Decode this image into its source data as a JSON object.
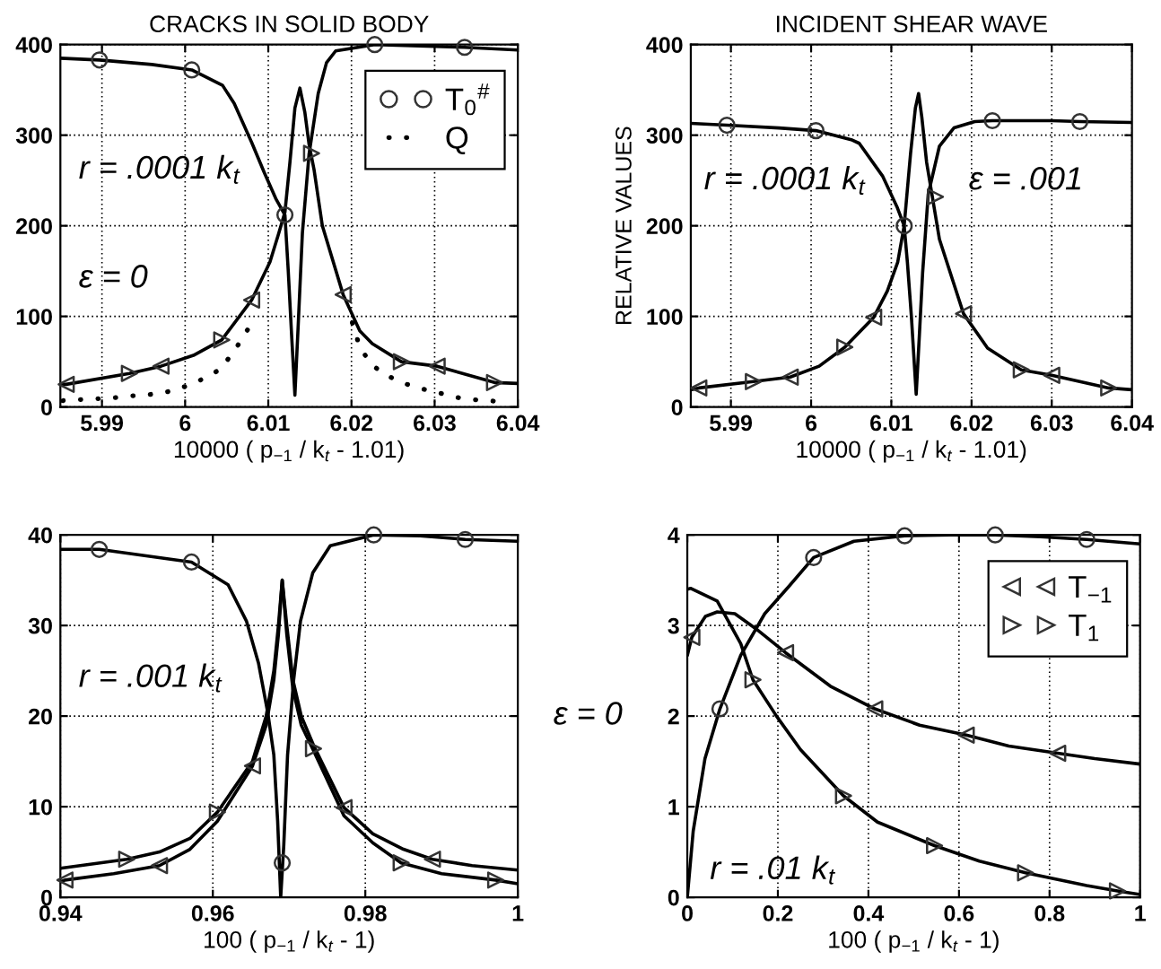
{
  "chart_data": [
    {
      "type": "line",
      "title": "CRACKS IN SOLID BODY",
      "xlabel": "10000 ( p$_{−1}$ / k$_{t}$ - 1.01)",
      "xlim": [
        5.985,
        6.04
      ],
      "xticks": [
        5.99,
        6,
        6.01,
        6.02,
        6.03,
        6.04
      ],
      "ylim": [
        0,
        400
      ],
      "yticks": [
        0,
        100,
        200,
        300,
        400
      ],
      "grid": true,
      "legend": "top right",
      "annotations": [
        "r = .0001 k$_{t}$",
        "ε = 0"
      ],
      "series": [
        {
          "color": "#000000",
          "line_style": "solid",
          "x": [
            5.985,
            5.9897,
            5.996,
            6.0008,
            6.0045,
            6.0059,
            6.008,
            6.0095,
            6.0109,
            6.012,
            6.0124,
            6.0128,
            6.0132,
            6.0136,
            6.0141,
            6.0149,
            6.016,
            6.017,
            6.0181,
            6.0228,
            6.03,
            6.0336,
            6.04
          ],
          "values": [
            385,
            383,
            378,
            372,
            355,
            335,
            292,
            259,
            230,
            212,
            150,
            80,
            13,
            91,
            192,
            279,
            346,
            380,
            393,
            400,
            398,
            397,
            394
          ]
        },
        {
          "color": "#000000",
          "line_style": "solid",
          "x": [
            5.985,
            5.9857,
            5.9933,
            5.9971,
            6.001,
            6.0044,
            6.008,
            6.0102,
            6.0112,
            6.012,
            6.0126,
            6.0132,
            6.0138,
            6.0144,
            6.0149,
            6.0155,
            6.0165,
            6.019,
            6.021,
            6.0225,
            6.026,
            6.0303,
            6.0372,
            6.04
          ],
          "values": [
            25,
            25,
            37,
            45,
            57,
            74,
            118,
            160,
            190,
            215,
            270,
            330,
            352,
            325,
            290,
            262,
            200,
            124,
            84,
            70,
            50,
            45,
            27,
            26
          ]
        },
        {
          "type": "scatter",
          "name": "T$_{0}$$^{#}$",
          "color": "#333333",
          "marker": "circle",
          "x": [
            5.9897,
            6.0008,
            6.012,
            6.0228,
            6.0336
          ],
          "values": [
            383,
            372,
            212,
            400,
            397
          ]
        },
        {
          "name": "Q",
          "color": "#000000",
          "line_style": "dotted",
          "x": [
            5.9853,
            5.9873,
            5.9892,
            5.9912,
            5.9932,
            5.995,
            5.9968,
            5.9986,
            6.0004,
            6.0024,
            6.0043,
            6.0062,
            6.0079,
            6.014,
            6.0201,
            6.021,
            6.0224,
            6.024,
            6.0258,
            6.0276,
            6.0294,
            6.0312,
            6.033,
            6.0348,
            6.0366,
            6.0384
          ],
          "values": [
            7,
            8,
            9,
            10,
            12,
            13,
            15,
            18,
            24,
            32,
            42,
            66,
            91,
            null,
            93,
            66,
            47,
            36,
            28,
            22,
            18,
            14,
            10,
            8,
            7,
            5
          ]
        },
        {
          "type": "scatter",
          "color": "#333333",
          "marker": "triangle-left",
          "x": [
            5.9857,
            5.9971,
            6.008,
            6.019,
            6.0303
          ],
          "values": [
            25,
            45,
            118,
            124,
            45
          ]
        },
        {
          "type": "scatter",
          "color": "#333333",
          "marker": "triangle-right",
          "x": [
            5.9933,
            6.0044,
            6.0152,
            6.026,
            6.0372
          ],
          "values": [
            37,
            74,
            280,
            50,
            27
          ]
        }
      ]
    },
    {
      "type": "line",
      "title": "INCIDENT SHEAR WAVE",
      "xlabel": "10000 ( p$_{−1}$ / k$_{t}$ - 1.01)",
      "ylabel": "RELATIVE VALUES",
      "xlim": [
        5.985,
        6.04
      ],
      "xticks": [
        5.99,
        6,
        6.01,
        6.02,
        6.03,
        6.04
      ],
      "ylim": [
        0,
        400
      ],
      "yticks": [
        0,
        100,
        200,
        300,
        400
      ],
      "grid": true,
      "annotations": [
        "r = .0001 k$_{t}$",
        "ε = .001"
      ],
      "series": [
        {
          "color": "#000000",
          "line_style": "solid",
          "x": [
            5.985,
            5.9895,
            5.996,
            6.0006,
            6.005,
            6.006,
            6.0089,
            6.0107,
            6.0116,
            6.012,
            6.0125,
            6.0131,
            6.0135,
            6.0139,
            6.0146,
            6.016,
            6.0178,
            6.0204,
            6.0226,
            6.03,
            6.0335,
            6.04
          ],
          "values": [
            313,
            311,
            308,
            305,
            295,
            291,
            255,
            221,
            200,
            160,
            100,
            14,
            80,
            148,
            235,
            288,
            308,
            315,
            316,
            316,
            315,
            314
          ]
        },
        {
          "color": "#000000",
          "line_style": "solid",
          "x": [
            5.985,
            5.986,
            5.9928,
            5.9974,
            6.001,
            6.0042,
            6.0078,
            6.0095,
            6.0108,
            6.0116,
            6.0124,
            6.013,
            6.0134,
            6.0138,
            6.0144,
            6.015,
            6.016,
            6.019,
            6.022,
            6.0262,
            6.03,
            6.0371,
            6.04
          ],
          "values": [
            19,
            21,
            28,
            33,
            45,
            66,
            99,
            128,
            160,
            200,
            280,
            330,
            346,
            320,
            270,
            238,
            185,
            103,
            65,
            41,
            35,
            21,
            19
          ]
        },
        {
          "type": "scatter",
          "color": "#333333",
          "marker": "circle",
          "x": [
            5.9895,
            6.0006,
            6.0116,
            6.0226,
            6.0335
          ],
          "values": [
            311,
            305,
            200,
            316,
            315
          ]
        },
        {
          "type": "scatter",
          "color": "#333333",
          "marker": "triangle-left",
          "x": [
            5.986,
            5.9974,
            6.0078,
            6.019,
            6.03
          ],
          "values": [
            21,
            33,
            99,
            103,
            35
          ]
        },
        {
          "type": "scatter",
          "color": "#333333",
          "marker": "triangle-right",
          "x": [
            5.9928,
            6.0042,
            6.0155,
            6.0262,
            6.0371
          ],
          "values": [
            28,
            66,
            232,
            41,
            21
          ]
        }
      ]
    },
    {
      "type": "line",
      "xlabel": "100 ( p$_{−1}$ / k$_{t}$ - 1)",
      "xlim": [
        0.94,
        1
      ],
      "xticks": [
        0.94,
        0.96,
        0.98,
        1
      ],
      "ylim": [
        0,
        40
      ],
      "yticks": [
        0,
        10,
        20,
        30,
        40
      ],
      "grid": true,
      "annotations": [
        "r = .001 k$_{t}$"
      ],
      "series": [
        {
          "color": "#000000",
          "line_style": "solid",
          "x": [
            0.94,
            0.9451,
            0.9572,
            0.962,
            0.9644,
            0.966,
            0.9672,
            0.968,
            0.9685,
            0.9689,
            0.9693,
            0.9698,
            0.9706,
            0.9715,
            0.9731,
            0.9754,
            0.9811,
            0.9872,
            0.9931,
            1.0
          ],
          "values": [
            38.4,
            38.4,
            37,
            34.5,
            30.5,
            25.8,
            20.4,
            15.7,
            8.4,
            0,
            5.7,
            15.7,
            24,
            30.5,
            35.8,
            38.8,
            40,
            39.9,
            39.5,
            39.3
          ]
        },
        {
          "color": "#000000",
          "line_style": "solid",
          "x": [
            0.94,
            0.9406,
            0.947,
            0.953,
            0.957,
            0.9606,
            0.9652,
            0.967,
            0.968,
            0.9686,
            0.9691,
            0.9697,
            0.9705,
            0.9716,
            0.9732,
            0.9772,
            0.981,
            0.985,
            0.9888,
            0.994,
            1.0
          ],
          "values": [
            1.7,
            1.9,
            2.6,
            3.5,
            5.3,
            8.4,
            14.5,
            19,
            24,
            29,
            35,
            30,
            24,
            20,
            16.8,
            9.9,
            7,
            5.3,
            4.2,
            3.5,
            3.0
          ]
        },
        {
          "color": "#000000",
          "line_style": "solid",
          "x": [
            0.94,
            0.9487,
            0.953,
            0.957,
            0.9606,
            0.9652,
            0.967,
            0.968,
            0.9686,
            0.9691,
            0.9697,
            0.9705,
            0.9716,
            0.9732,
            0.9772,
            0.981,
            0.9847,
            0.99,
            0.9971,
            1.0
          ],
          "values": [
            3.2,
            4.2,
            5.0,
            6.5,
            9.4,
            15,
            20,
            25,
            30,
            35,
            29,
            23,
            19,
            16.2,
            9,
            6,
            3.8,
            2.6,
            1.9,
            1.5
          ]
        },
        {
          "type": "scatter",
          "color": "#333333",
          "marker": "circle",
          "x": [
            0.9451,
            0.9572,
            0.9691,
            0.9811,
            0.9931
          ],
          "values": [
            38.4,
            37,
            3.8,
            40,
            39.5
          ]
        },
        {
          "type": "scatter",
          "color": "#333333",
          "marker": "triangle-left",
          "x": [
            0.9406,
            0.953,
            0.9652,
            0.9772,
            0.9888
          ],
          "values": [
            1.9,
            3.5,
            14.5,
            9.9,
            4.2
          ]
        },
        {
          "type": "scatter",
          "color": "#333333",
          "marker": "triangle-right",
          "x": [
            0.9487,
            0.9606,
            0.9732,
            0.9847,
            0.9971
          ],
          "values": [
            4.2,
            9.4,
            16.4,
            3.8,
            1.9
          ]
        }
      ]
    },
    {
      "type": "line",
      "xlabel": "100 ( p$_{−1}$ / k$_{t}$ - 1)",
      "ylabel": "ε = 0",
      "xlim": [
        0,
        1
      ],
      "xticks": [
        0,
        0.2,
        0.4,
        0.6,
        0.8,
        1
      ],
      "ylim": [
        0,
        4
      ],
      "yticks": [
        0,
        1,
        2,
        3,
        4
      ],
      "grid": true,
      "legend": "top right",
      "annotations": [
        "r = .01 k$_{t}$"
      ],
      "series": [
        {
          "color": "#000000",
          "line_style": "solid",
          "x": [
            0,
            0.013,
            0.039,
            0.072,
            0.118,
            0.171,
            0.224,
            0.279,
            0.368,
            0.48,
            0.58,
            0.68,
            0.78,
            0.882,
            1.0
          ],
          "values": [
            0,
            0.73,
            1.53,
            2.08,
            2.67,
            3.13,
            3.43,
            3.75,
            3.93,
            3.99,
            4.0,
            4.0,
            3.98,
            3.95,
            3.9
          ]
        },
        {
          "color": "#000000",
          "line_style": "solid",
          "x": [
            0,
            0.01,
            0.04,
            0.066,
            0.105,
            0.15,
            0.217,
            0.316,
            0.414,
            0.513,
            0.616,
            0.71,
            0.818,
            0.9,
            1.0
          ],
          "values": [
            2.67,
            2.87,
            3.1,
            3.15,
            3.13,
            2.97,
            2.7,
            2.33,
            2.08,
            1.9,
            1.79,
            1.67,
            1.59,
            1.53,
            1.47
          ]
        },
        {
          "color": "#000000",
          "line_style": "solid",
          "x": [
            0,
            0.007,
            0.066,
            0.118,
            0.145,
            0.197,
            0.25,
            0.345,
            0.42,
            0.546,
            0.645,
            0.747,
            0.882,
            0.95,
            1.0
          ],
          "values": [
            3.4,
            3.41,
            3.27,
            2.8,
            2.4,
            2.0,
            1.63,
            1.12,
            0.83,
            0.57,
            0.4,
            0.27,
            0.13,
            0.07,
            0.03
          ]
        },
        {
          "type": "scatter",
          "color": "#333333",
          "marker": "circle",
          "x": [
            0.072,
            0.279,
            0.48,
            0.68,
            0.882
          ],
          "values": [
            2.08,
            3.75,
            3.99,
            4.0,
            3.95
          ]
        },
        {
          "type": "scatter",
          "name": "T$_{−1}$",
          "color": "#333333",
          "marker": "triangle-left",
          "x": [
            0.01,
            0.217,
            0.414,
            0.616,
            0.818
          ],
          "values": [
            2.87,
            2.7,
            2.08,
            1.79,
            1.59
          ]
        },
        {
          "type": "scatter",
          "name": "T$_{1}$",
          "color": "#333333",
          "marker": "triangle-right",
          "x": [
            0.145,
            0.345,
            0.546,
            0.747,
            0.95
          ],
          "values": [
            2.4,
            1.12,
            0.57,
            0.27,
            0.07
          ]
        }
      ]
    }
  ]
}
